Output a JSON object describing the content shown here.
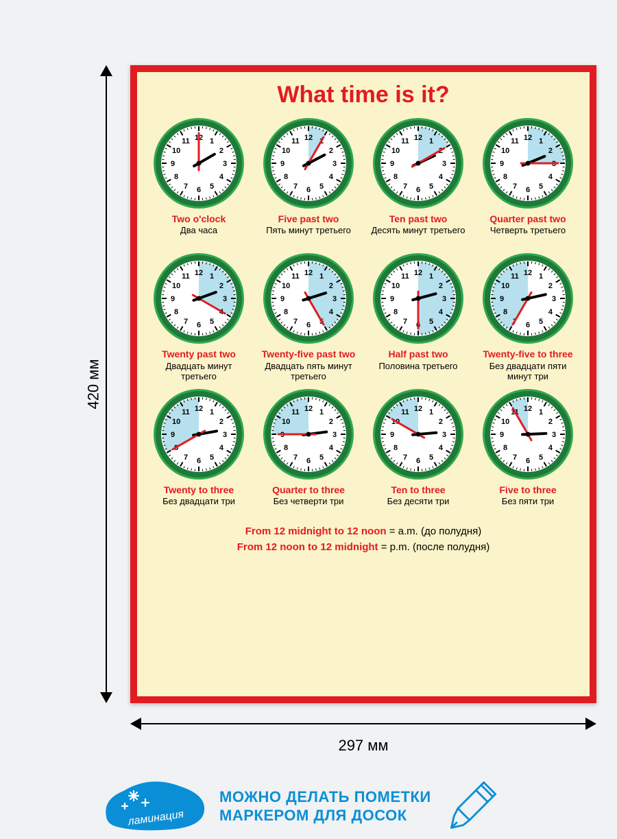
{
  "page_bg": "#f0f2f4",
  "dims": {
    "height_label": "420 мм",
    "width_label": "297 мм"
  },
  "poster": {
    "border_color": "#e11b22",
    "bg_color": "#fbf3c9",
    "title": "What time is it?",
    "title_color": "#e11b22",
    "clock": {
      "rim_color": "#2fa84f",
      "rim_dark": "#1e7a38",
      "face_color": "#ffffff",
      "shade_color": "#b6e0ed",
      "tick_color": "#000000",
      "number_color": "#000000",
      "hour_hand_color": "#000000",
      "minute_hand_color": "#e11b22",
      "numbers": [
        "12",
        "1",
        "2",
        "3",
        "4",
        "5",
        "6",
        "7",
        "8",
        "9",
        "10",
        "11"
      ]
    },
    "clocks": [
      {
        "hour": 2,
        "minute": 0,
        "shade_from": null,
        "shade_to": null,
        "shade_invert": false,
        "en": "Two o'clock",
        "ru": "Два часа"
      },
      {
        "hour": 2,
        "minute": 5,
        "shade_from": 0,
        "shade_to": 30,
        "shade_invert": false,
        "en": "Five past two",
        "ru": "Пять минут третьего"
      },
      {
        "hour": 2,
        "minute": 10,
        "shade_from": 0,
        "shade_to": 60,
        "shade_invert": false,
        "en": "Ten past two",
        "ru": "Десять минут третьего"
      },
      {
        "hour": 2,
        "minute": 15,
        "shade_from": 0,
        "shade_to": 90,
        "shade_invert": false,
        "en": "Quarter past two",
        "ru": "Четверть третьего"
      },
      {
        "hour": 2,
        "minute": 20,
        "shade_from": 0,
        "shade_to": 120,
        "shade_invert": false,
        "en": "Twenty past two",
        "ru": "Двадцать минут третьего"
      },
      {
        "hour": 2,
        "minute": 25,
        "shade_from": 0,
        "shade_to": 150,
        "shade_invert": false,
        "en": "Twenty-five past two",
        "ru": "Двадцать пять минут третьего"
      },
      {
        "hour": 2,
        "minute": 30,
        "shade_from": 0,
        "shade_to": 180,
        "shade_invert": false,
        "en": "Half past two",
        "ru": "Половина третьего"
      },
      {
        "hour": 2,
        "minute": 35,
        "shade_from": 210,
        "shade_to": 360,
        "shade_invert": false,
        "en": "Twenty-five to three",
        "ru": "Без двадцати пяти минут три"
      },
      {
        "hour": 2,
        "minute": 40,
        "shade_from": 240,
        "shade_to": 360,
        "shade_invert": false,
        "en": "Twenty to three",
        "ru": "Без двадцати три"
      },
      {
        "hour": 2,
        "minute": 45,
        "shade_from": 270,
        "shade_to": 360,
        "shade_invert": false,
        "en": "Quarter to three",
        "ru": "Без четверти три"
      },
      {
        "hour": 2,
        "minute": 50,
        "shade_from": 300,
        "shade_to": 360,
        "shade_invert": false,
        "en": "Ten to three",
        "ru": "Без десяти три"
      },
      {
        "hour": 2,
        "minute": 55,
        "shade_from": 330,
        "shade_to": 360,
        "shade_invert": false,
        "en": "Five to three",
        "ru": "Без пяти три"
      }
    ],
    "footer": {
      "line1_red": "From 12 midnight to 12 noon",
      "line1_black": " = a.m. (до полудня)",
      "line2_red": "From 12 noon to 12 midnight",
      "line2_black": " = p.m. (после полудня)"
    }
  },
  "promo": {
    "blob_color": "#0a8fd6",
    "blob_text": "ламинация",
    "blob_text_color": "#ffffff",
    "sparkle_color": "#ffffff",
    "text_line1": "МОЖНО ДЕЛАТЬ ПОМЕТКИ",
    "text_line2": "МАРКЕРОМ ДЛЯ ДОСОК",
    "text_color": "#0a8fd6",
    "marker_stroke": "#0a8fd6"
  }
}
